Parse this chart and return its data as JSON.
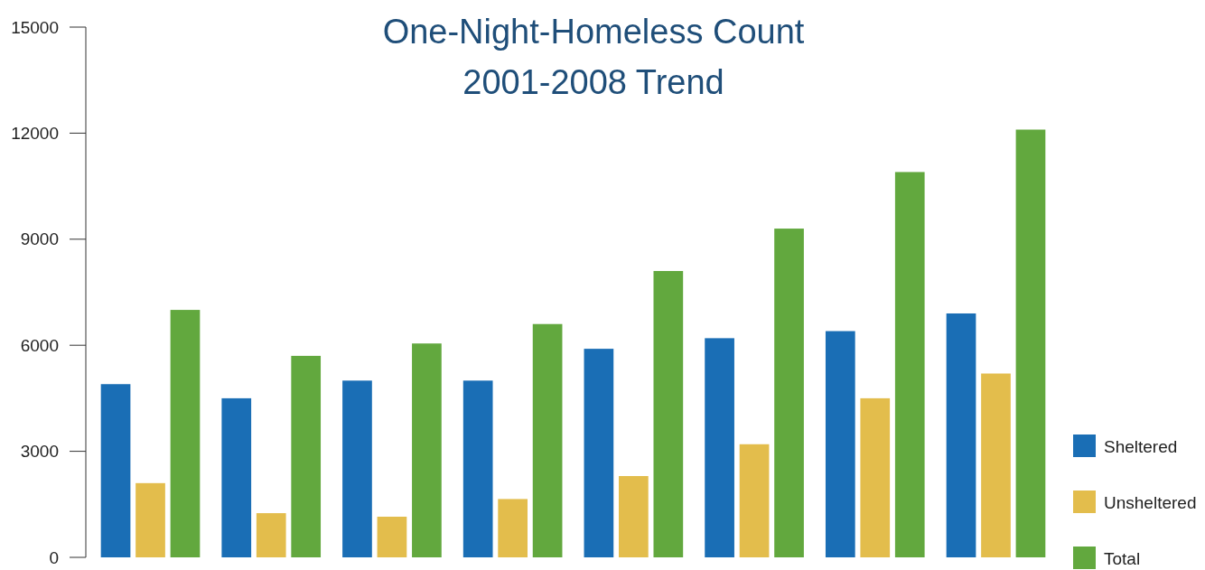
{
  "chart_data": {
    "type": "bar",
    "title": "One-Night-Homeless Count",
    "subtitle": "2001-2008 Trend",
    "categories": [
      null,
      null,
      null,
      null,
      null,
      null,
      null,
      null
    ],
    "series": [
      {
        "name": "Sheltered",
        "color": "#1a6eb5",
        "values": [
          4900,
          4500,
          5000,
          5000,
          5900,
          6200,
          6400,
          6900
        ]
      },
      {
        "name": "Unsheltered",
        "color": "#e3bd4c",
        "values": [
          2100,
          1250,
          1150,
          1650,
          2300,
          3200,
          4500,
          5200
        ]
      },
      {
        "name": "Total",
        "color": "#62a83e",
        "values": [
          7000,
          5700,
          6050,
          6600,
          8100,
          9300,
          10900,
          12100
        ]
      }
    ],
    "ylim": [
      0,
      15000
    ],
    "yticks": [
      0,
      3000,
      6000,
      9000,
      12000,
      15000
    ],
    "grid": false,
    "legend": "bottom right"
  }
}
